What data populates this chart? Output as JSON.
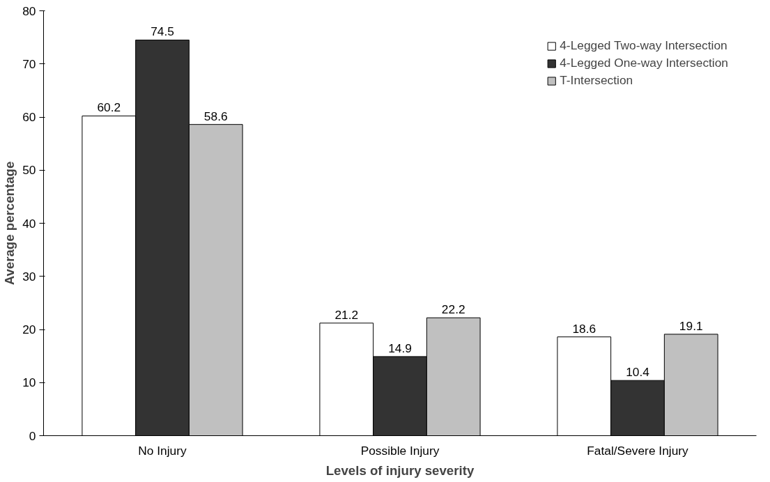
{
  "chart_data": {
    "type": "bar",
    "xlabel": "Levels of injury severity",
    "ylabel": "Average percentage",
    "categories": [
      "No Injury",
      "Possible Injury",
      "Fatal/Severe Injury"
    ],
    "series": [
      {
        "name": "4-Legged Two-way Intersection",
        "color": "#ffffff",
        "values": [
          60.2,
          21.2,
          18.6
        ]
      },
      {
        "name": "4-Legged One-way Intersection",
        "color": "#333333",
        "values": [
          74.5,
          14.9,
          10.4
        ]
      },
      {
        "name": "T-Intersection",
        "color": "#c0c0c0",
        "values": [
          58.6,
          22.2,
          19.1
        ]
      }
    ],
    "ylim": [
      0,
      80
    ],
    "yticks": [
      0,
      10,
      20,
      30,
      40,
      50,
      60,
      70,
      80
    ],
    "data_labels": true,
    "grid": false,
    "legend": "top right"
  }
}
